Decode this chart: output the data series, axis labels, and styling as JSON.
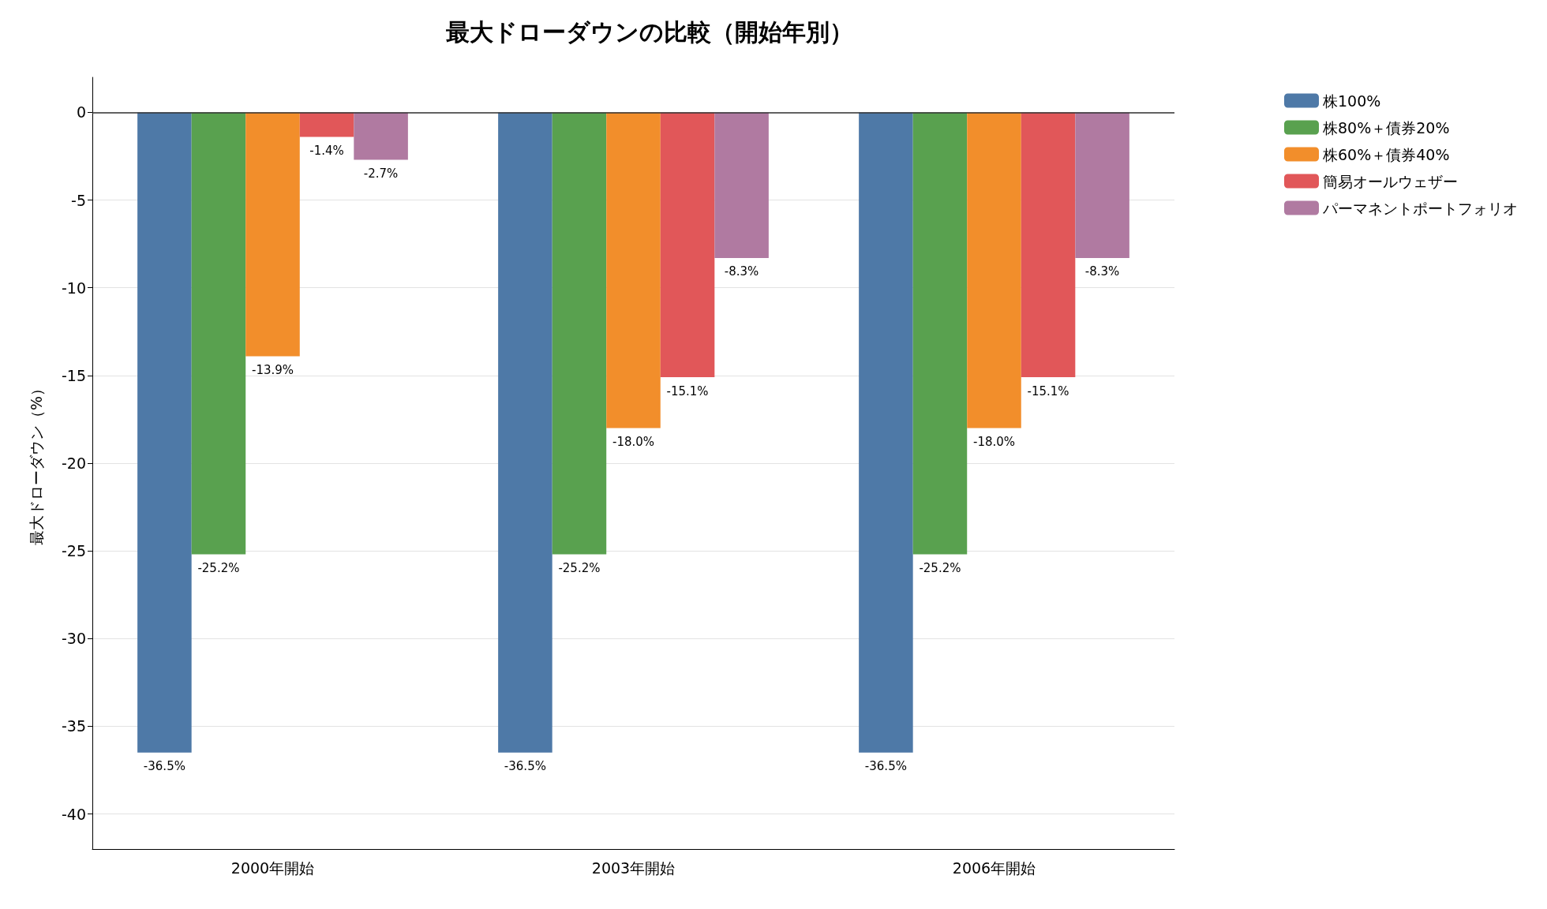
{
  "chart_data": {
    "type": "bar",
    "title": "最大ドローダウンの比較（開始年別）",
    "ylabel": "最大ドローダウン（%）",
    "categories": [
      "2000年開始",
      "2003年開始",
      "2006年開始"
    ],
    "series": [
      {
        "name": "株100%",
        "color": "#4e79a7",
        "values": [
          -36.5,
          -36.5,
          -36.5
        ],
        "value_labels": [
          "-36.5%",
          "-36.5%",
          "-36.5%"
        ]
      },
      {
        "name": "株80%＋債券20%",
        "color": "#59a14f",
        "values": [
          -25.2,
          -25.2,
          -25.2
        ],
        "value_labels": [
          "-25.2%",
          "-25.2%",
          "-25.2%"
        ]
      },
      {
        "name": "株60%＋債券40%",
        "color": "#f28e2b",
        "values": [
          -13.9,
          -18.0,
          -18.0
        ],
        "value_labels": [
          "-13.9%",
          "-18.0%",
          "-18.0%"
        ]
      },
      {
        "name": "簡易オールウェザー",
        "color": "#e15759",
        "values": [
          -1.4,
          -15.1,
          -15.1
        ],
        "value_labels": [
          "-1.4%",
          "-15.1%",
          "-15.1%"
        ]
      },
      {
        "name": "パーマネントポートフォリオ",
        "color": "#b07aa1",
        "values": [
          -2.7,
          -8.3,
          -8.3
        ],
        "value_labels": [
          "-2.7%",
          "-8.3%",
          "-8.3%"
        ]
      }
    ],
    "ylim": [
      -42,
      2
    ],
    "yticks": [
      -40,
      -35,
      -30,
      -25,
      -20,
      -15,
      -10,
      -5,
      0
    ],
    "ref_lines": [
      {
        "axis": "y",
        "value": 0,
        "color": "#333333"
      }
    ],
    "grid": "y",
    "legend": "top right"
  }
}
